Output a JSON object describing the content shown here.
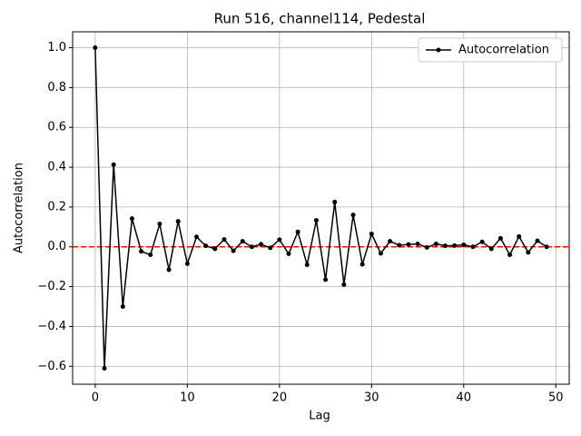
{
  "chart_data": {
    "type": "line",
    "title": "Run 516, channel114, Pedestal",
    "xlabel": "Lag",
    "ylabel": "Autocorrelation",
    "x": [
      0,
      1,
      2,
      3,
      4,
      5,
      6,
      7,
      8,
      9,
      10,
      11,
      12,
      13,
      14,
      15,
      16,
      17,
      18,
      19,
      20,
      21,
      22,
      23,
      24,
      25,
      26,
      27,
      28,
      29,
      30,
      31,
      32,
      33,
      34,
      35,
      36,
      37,
      38,
      39,
      40,
      41,
      42,
      43,
      44,
      45,
      46,
      47,
      48,
      49
    ],
    "series": [
      {
        "name": "Autocorrelation",
        "color": "#000000",
        "values": [
          1.0,
          -0.61,
          0.413,
          -0.3,
          0.142,
          -0.023,
          -0.04,
          0.115,
          -0.115,
          0.128,
          -0.085,
          0.05,
          0.005,
          -0.01,
          0.037,
          -0.02,
          0.028,
          0.0,
          0.013,
          -0.005,
          0.036,
          -0.035,
          0.075,
          -0.09,
          0.133,
          -0.165,
          0.225,
          -0.19,
          0.16,
          -0.088,
          0.065,
          -0.033,
          0.028,
          0.008,
          0.012,
          0.015,
          -0.003,
          0.015,
          0.005,
          0.006,
          0.01,
          0.0,
          0.025,
          -0.01,
          0.043,
          -0.04,
          0.052,
          -0.028,
          0.03,
          0.0
        ]
      }
    ],
    "hline": {
      "value": 0,
      "color": "#ff0000"
    },
    "xlim": [
      -2.45,
      51.45
    ],
    "ylim": [
      -0.69,
      1.08
    ],
    "xticks": [
      0,
      10,
      20,
      30,
      40,
      50
    ],
    "yticks": [
      {
        "value": -0.6,
        "label": "−0.6"
      },
      {
        "value": -0.4,
        "label": "−0.4"
      },
      {
        "value": -0.2,
        "label": "−0.2"
      },
      {
        "value": 0,
        "label": "0.0"
      },
      {
        "value": 0.2,
        "label": "0.2"
      },
      {
        "value": 0.4,
        "label": "0.4"
      },
      {
        "value": 0.6,
        "label": "0.6"
      },
      {
        "value": 0.8,
        "label": "0.8"
      },
      {
        "value": 1.0,
        "label": "1.0"
      }
    ],
    "grid": true,
    "legend": "upper right"
  }
}
